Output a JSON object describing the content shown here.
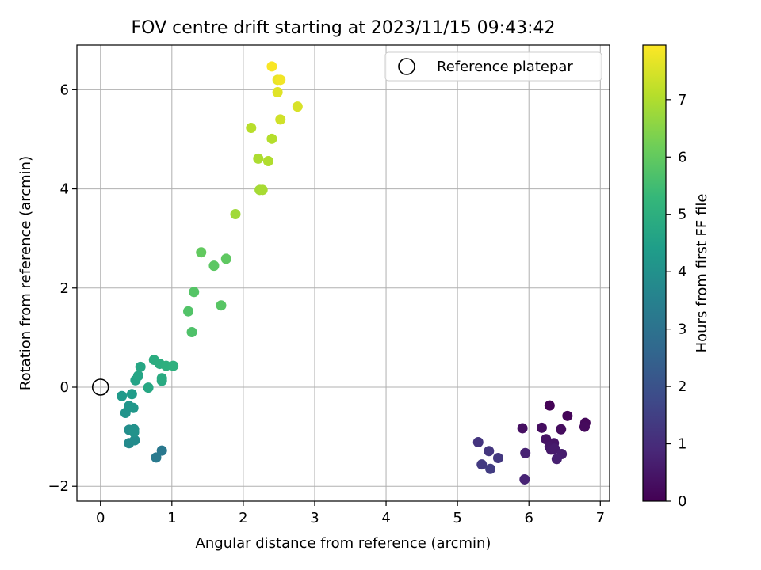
{
  "chart_data": {
    "type": "scatter",
    "title": "FOV centre drift starting at 2023/11/15 09:43:42",
    "xlabel": "Angular distance from reference (arcmin)",
    "ylabel": "Rotation from reference (arcmin)",
    "xlim": [
      -0.33,
      7.13
    ],
    "ylim": [
      -2.3,
      6.9
    ],
    "x_ticks": [
      0,
      1,
      2,
      3,
      4,
      5,
      6,
      7
    ],
    "y_ticks": [
      -2,
      0,
      2,
      4,
      6
    ],
    "grid": true,
    "colormap": "viridis",
    "colormap_stops": [
      "#440154",
      "#482878",
      "#3e4a89",
      "#31688e",
      "#26828e",
      "#1f9e89",
      "#35b779",
      "#6ece58",
      "#b5de2b",
      "#fde725"
    ],
    "colorbar": {
      "label": "Hours from first FF file",
      "range": [
        0,
        7.95
      ],
      "ticks": [
        0,
        1,
        2,
        3,
        4,
        5,
        6,
        7
      ]
    },
    "legend": {
      "position": "top-right",
      "entries": [
        {
          "label": "Reference platepar",
          "marker": "open-circle"
        }
      ]
    },
    "reference_point": {
      "x": 0,
      "y": 0
    },
    "points": [
      {
        "x": 6.29,
        "y": -0.37,
        "c": 0.05
      },
      {
        "x": 6.54,
        "y": -0.58,
        "c": 0.1
      },
      {
        "x": 6.79,
        "y": -0.72,
        "c": 0.15
      },
      {
        "x": 6.78,
        "y": -0.8,
        "c": 0.2
      },
      {
        "x": 6.45,
        "y": -0.85,
        "c": 0.25
      },
      {
        "x": 6.18,
        "y": -0.82,
        "c": 0.3
      },
      {
        "x": 5.91,
        "y": -0.83,
        "c": 0.35
      },
      {
        "x": 6.24,
        "y": -1.05,
        "c": 0.4
      },
      {
        "x": 6.35,
        "y": -1.13,
        "c": 0.45
      },
      {
        "x": 6.29,
        "y": -1.2,
        "c": 0.5
      },
      {
        "x": 6.31,
        "y": -1.26,
        "c": 0.55
      },
      {
        "x": 6.36,
        "y": -1.24,
        "c": 0.6
      },
      {
        "x": 6.46,
        "y": -1.35,
        "c": 0.65
      },
      {
        "x": 6.39,
        "y": -1.45,
        "c": 0.7
      },
      {
        "x": 5.95,
        "y": -1.33,
        "c": 0.75
      },
      {
        "x": 5.94,
        "y": -1.86,
        "c": 0.8
      },
      {
        "x": 5.29,
        "y": -1.11,
        "c": 1.2
      },
      {
        "x": 5.44,
        "y": -1.29,
        "c": 1.25
      },
      {
        "x": 5.57,
        "y": -1.43,
        "c": 1.3
      },
      {
        "x": 5.34,
        "y": -1.56,
        "c": 1.35
      },
      {
        "x": 5.46,
        "y": -1.65,
        "c": 1.4
      },
      {
        "x": 0.86,
        "y": -1.28,
        "c": 3.2
      },
      {
        "x": 0.78,
        "y": -1.42,
        "c": 3.25
      },
      {
        "x": 0.4,
        "y": -1.13,
        "c": 3.8
      },
      {
        "x": 0.48,
        "y": -1.07,
        "c": 3.85
      },
      {
        "x": 0.4,
        "y": -0.86,
        "c": 3.9
      },
      {
        "x": 0.47,
        "y": -0.85,
        "c": 4.0
      },
      {
        "x": 0.47,
        "y": -0.91,
        "c": 4.05
      },
      {
        "x": 0.35,
        "y": -0.52,
        "c": 4.1
      },
      {
        "x": 0.4,
        "y": -0.38,
        "c": 4.15
      },
      {
        "x": 0.46,
        "y": -0.42,
        "c": 4.2
      },
      {
        "x": 0.3,
        "y": -0.18,
        "c": 4.3
      },
      {
        "x": 0.44,
        "y": -0.14,
        "c": 4.35
      },
      {
        "x": 0.49,
        "y": 0.14,
        "c": 4.6
      },
      {
        "x": 0.53,
        "y": 0.23,
        "c": 4.65
      },
      {
        "x": 0.56,
        "y": 0.41,
        "c": 4.7
      },
      {
        "x": 0.67,
        "y": -0.01,
        "c": 4.75
      },
      {
        "x": 0.86,
        "y": 0.13,
        "c": 4.8
      },
      {
        "x": 0.86,
        "y": 0.18,
        "c": 4.85
      },
      {
        "x": 0.75,
        "y": 0.55,
        "c": 4.9
      },
      {
        "x": 0.83,
        "y": 0.47,
        "c": 4.95
      },
      {
        "x": 0.92,
        "y": 0.43,
        "c": 5.0
      },
      {
        "x": 1.02,
        "y": 0.43,
        "c": 5.05
      },
      {
        "x": 1.28,
        "y": 1.11,
        "c": 5.7
      },
      {
        "x": 1.23,
        "y": 1.53,
        "c": 5.75
      },
      {
        "x": 1.31,
        "y": 1.92,
        "c": 5.8
      },
      {
        "x": 1.69,
        "y": 1.65,
        "c": 5.85
      },
      {
        "x": 1.59,
        "y": 2.45,
        "c": 5.9
      },
      {
        "x": 1.76,
        "y": 2.59,
        "c": 5.95
      },
      {
        "x": 1.41,
        "y": 2.72,
        "c": 6.0
      },
      {
        "x": 1.89,
        "y": 3.49,
        "c": 6.8
      },
      {
        "x": 2.23,
        "y": 3.98,
        "c": 6.85
      },
      {
        "x": 2.27,
        "y": 3.98,
        "c": 6.9
      },
      {
        "x": 2.21,
        "y": 4.61,
        "c": 6.95
      },
      {
        "x": 2.35,
        "y": 4.56,
        "c": 7.0
      },
      {
        "x": 2.4,
        "y": 5.01,
        "c": 7.05
      },
      {
        "x": 2.11,
        "y": 5.23,
        "c": 7.1
      },
      {
        "x": 2.52,
        "y": 5.4,
        "c": 7.4
      },
      {
        "x": 2.76,
        "y": 5.66,
        "c": 7.5
      },
      {
        "x": 2.48,
        "y": 5.95,
        "c": 7.6
      },
      {
        "x": 2.48,
        "y": 6.2,
        "c": 7.7
      },
      {
        "x": 2.52,
        "y": 6.2,
        "c": 7.8
      },
      {
        "x": 2.4,
        "y": 6.47,
        "c": 7.9
      }
    ]
  }
}
